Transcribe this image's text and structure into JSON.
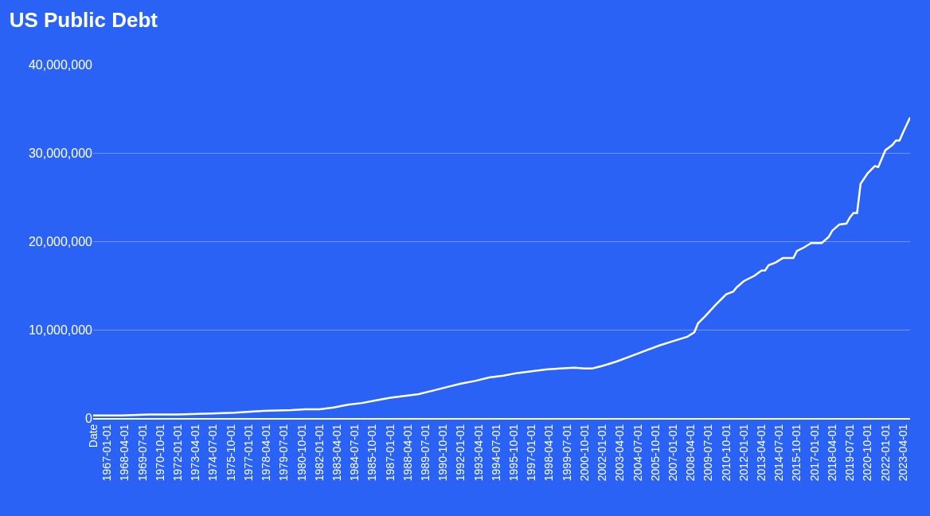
{
  "chart_data": {
    "type": "line",
    "title": "US Public Debt",
    "x": [
      "1966-01-01",
      "1968-01-01",
      "1970-01-01",
      "1972-01-01",
      "1974-01-01",
      "1976-01-01",
      "1978-01-01",
      "1980-01-01",
      "1981-01-01",
      "1982-01-01",
      "1983-01-01",
      "1984-01-01",
      "1985-01-01",
      "1986-01-01",
      "1987-01-01",
      "1988-01-01",
      "1989-01-01",
      "1990-01-01",
      "1991-01-01",
      "1992-01-01",
      "1993-01-01",
      "1994-01-01",
      "1995-01-01",
      "1996-01-01",
      "1997-01-01",
      "1998-01-01",
      "1999-01-01",
      "2000-01-01",
      "2000-10-01",
      "2001-04-01",
      "2001-07-01",
      "2002-01-01",
      "2003-01-01",
      "2004-01-01",
      "2005-01-01",
      "2006-01-01",
      "2007-01-01",
      "2008-01-01",
      "2008-07-01",
      "2008-10-01",
      "2009-04-01",
      "2010-01-01",
      "2010-10-01",
      "2011-04-01",
      "2011-07-01",
      "2012-01-01",
      "2012-10-01",
      "2013-04-01",
      "2013-07-01",
      "2013-10-01",
      "2014-04-01",
      "2014-10-01",
      "2015-07-01",
      "2015-10-01",
      "2016-04-01",
      "2016-10-01",
      "2017-07-01",
      "2018-01-01",
      "2018-04-01",
      "2018-10-01",
      "2019-04-01",
      "2019-07-01",
      "2019-10-01",
      "2020-01-01",
      "2020-04-01",
      "2020-10-01",
      "2021-04-01",
      "2021-07-01",
      "2022-01-01",
      "2022-07-01",
      "2022-10-01",
      "2023-01-01",
      "2023-04-01",
      "2023-10-01"
    ],
    "series": [
      {
        "color": "#ffffff",
        "values": [
          300000,
          300000,
          400000,
          400000,
          500000,
          600000,
          800000,
          900000,
          1000000,
          1000000,
          1200000,
          1500000,
          1700000,
          2000000,
          2300000,
          2500000,
          2700000,
          3100000,
          3500000,
          3900000,
          4200000,
          4600000,
          4800000,
          5100000,
          5300000,
          5500000,
          5600000,
          5700000,
          5600000,
          5600000,
          5700000,
          5900000,
          6400000,
          7000000,
          7600000,
          8200000,
          8700000,
          9200000,
          9700000,
          10700000,
          11500000,
          12800000,
          14000000,
          14300000,
          14800000,
          15500000,
          16100000,
          16700000,
          16700000,
          17300000,
          17600000,
          18100000,
          18100000,
          18900000,
          19300000,
          19800000,
          19800000,
          20500000,
          21200000,
          21900000,
          22000000,
          22700000,
          23200000,
          23200000,
          26500000,
          27700000,
          28500000,
          28400000,
          30300000,
          30900000,
          31400000,
          31400000,
          32300000,
          34000000
        ]
      }
    ],
    "xlim": [
      "1966-01-01",
      "2023-10-01"
    ],
    "xticks": [
      {
        "value": "1966-01-01",
        "label": "Date"
      },
      "1967-01-01",
      "1968-04-01",
      "1969-07-01",
      "1970-10-01",
      "1972-01-01",
      "1973-04-01",
      "1974-07-01",
      "1975-10-01",
      "1977-01-01",
      "1978-04-01",
      "1979-07-01",
      "1980-10-01",
      "1982-01-01",
      "1983-04-01",
      "1984-07-01",
      "1985-10-01",
      "1987-01-01",
      "1988-04-01",
      "1989-07-01",
      "1990-10-01",
      "1992-01-01",
      "1993-04-01",
      "1994-07-01",
      "1995-10-01",
      "1997-01-01",
      "1998-04-01",
      "1999-07-01",
      "2000-10-01",
      "2002-01-01",
      "2003-04-01",
      "2004-07-01",
      "2005-10-01",
      "2007-01-01",
      "2008-04-01",
      "2009-07-01",
      "2010-10-01",
      "2012-01-01",
      "2013-04-01",
      "2014-07-01",
      "2015-10-01",
      "2017-01-01",
      "2018-04-01",
      "2019-07-01",
      "2020-10-01",
      "2022-01-01",
      "2023-04-01"
    ],
    "ylim": [
      0,
      40000000
    ],
    "yticks": [
      0,
      {
        "value": 10000000,
        "label": "10,000,000"
      },
      {
        "value": 20000000,
        "label": "20,000,000"
      },
      {
        "value": 30000000,
        "label": "30,000,000"
      },
      {
        "value": 40000000,
        "label": "40,000,000"
      }
    ],
    "grid": "y",
    "marker": "none",
    "line_style": "solid"
  }
}
